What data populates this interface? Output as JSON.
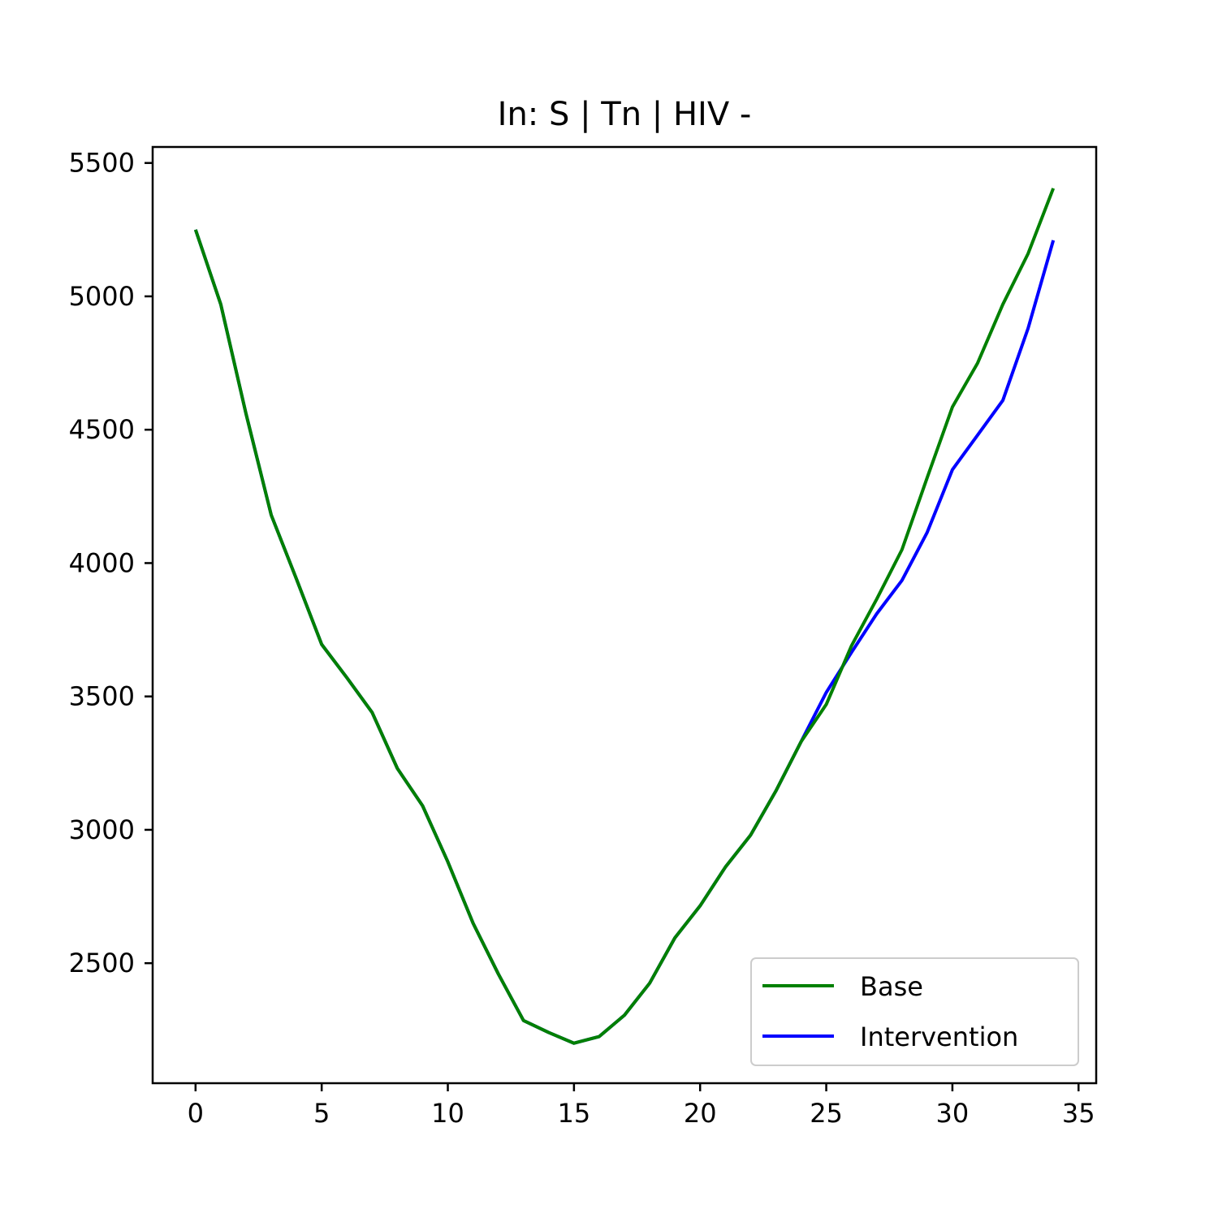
{
  "chart_data": {
    "type": "line",
    "title": "In: S | Tn | HIV -",
    "xlabel": "",
    "ylabel": "",
    "xlim": [
      -1.7,
      35.7
    ],
    "ylim": [
      2050,
      5560
    ],
    "xticks": [
      0,
      5,
      10,
      15,
      20,
      25,
      30,
      35
    ],
    "yticks": [
      2500,
      3000,
      3500,
      4000,
      4500,
      5000,
      5500
    ],
    "grid": false,
    "legend_position": "lower-right",
    "x": [
      0,
      1,
      2,
      3,
      4,
      5,
      6,
      7,
      8,
      9,
      10,
      11,
      12,
      13,
      14,
      15,
      16,
      17,
      18,
      19,
      20,
      21,
      22,
      23,
      24,
      25,
      26,
      27,
      28,
      29,
      30,
      31,
      32,
      33,
      34
    ],
    "series": [
      {
        "name": "Intervention",
        "color": "#0000ff",
        "values": [
          5250,
          4970,
          4560,
          4180,
          3940,
          3695,
          3570,
          3440,
          3230,
          3090,
          2880,
          2650,
          2460,
          2285,
          2240,
          2200,
          2225,
          2305,
          2425,
          2595,
          2715,
          2860,
          2980,
          3145,
          3330,
          3515,
          3665,
          3810,
          3935,
          4115,
          4350,
          4480,
          4610,
          4880,
          5210
        ]
      },
      {
        "name": "Base",
        "color": "#008000",
        "values": [
          5250,
          4970,
          4560,
          4180,
          3940,
          3695,
          3570,
          3440,
          3230,
          3090,
          2880,
          2650,
          2460,
          2285,
          2240,
          2200,
          2225,
          2305,
          2425,
          2595,
          2715,
          2860,
          2980,
          3145,
          3330,
          3470,
          3690,
          3865,
          4050,
          4320,
          4585,
          4750,
          4970,
          5160,
          5405
        ]
      }
    ],
    "legend": [
      "Base",
      "Intervention"
    ]
  }
}
